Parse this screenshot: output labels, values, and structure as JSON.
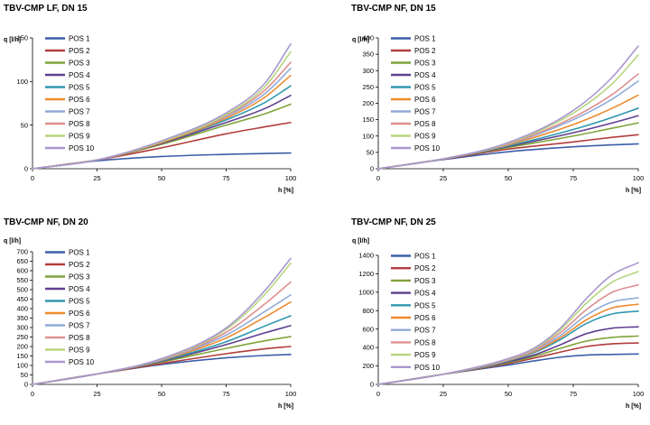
{
  "colors": [
    "#3b5ea8",
    "#b23c3c",
    "#7fa33a",
    "#5f3f8f",
    "#2f98ae",
    "#ee8a2e",
    "#90a9d8",
    "#de8f8f",
    "#b6d67e",
    "#a996cf"
  ],
  "chart_data": [
    {
      "type": "line",
      "title": "TBV-CMP LF, DN 15",
      "xlabel": "h [%]",
      "ylabel": "q [l/h]",
      "xlim": [
        0,
        100
      ],
      "ylim": [
        0,
        150
      ],
      "xticks": [
        0,
        25,
        50,
        75,
        100
      ],
      "yticks": [
        0,
        50,
        100,
        150
      ],
      "legend": "top-left",
      "x": [
        0,
        25,
        50,
        75,
        90,
        100
      ],
      "series": [
        {
          "name": "POS 1",
          "values": [
            0,
            9,
            14,
            16.5,
            17.5,
            18
          ]
        },
        {
          "name": "POS 2",
          "values": [
            0,
            10,
            24,
            40,
            48,
            53
          ]
        },
        {
          "name": "POS 3",
          "values": [
            0,
            10,
            28,
            50,
            63,
            74
          ]
        },
        {
          "name": "POS 4",
          "values": [
            0,
            10,
            29,
            53,
            69,
            84
          ]
        },
        {
          "name": "POS 5",
          "values": [
            0,
            10,
            30,
            56,
            76,
            95
          ]
        },
        {
          "name": "POS 6",
          "values": [
            0,
            10,
            30,
            58,
            82,
            107
          ]
        },
        {
          "name": "POS 7",
          "values": [
            0,
            10,
            31,
            60,
            86,
            115
          ]
        },
        {
          "name": "POS 8",
          "values": [
            0,
            10,
            31,
            61,
            90,
            122
          ]
        },
        {
          "name": "POS 9",
          "values": [
            0,
            10,
            31,
            62,
            94,
            134
          ]
        },
        {
          "name": "POS 10",
          "values": [
            0,
            10,
            32,
            64,
            98,
            143
          ]
        }
      ]
    },
    {
      "type": "line",
      "title": "TBV-CMP NF, DN 15",
      "xlabel": "h [%]",
      "ylabel": "q [l/h]",
      "xlim": [
        0,
        100
      ],
      "ylim": [
        0,
        400
      ],
      "xticks": [
        0,
        25,
        50,
        75,
        100
      ],
      "yticks": [
        0,
        50,
        100,
        150,
        200,
        250,
        300,
        350,
        400
      ],
      "legend": "top-left",
      "x": [
        0,
        25,
        50,
        75,
        90,
        100
      ],
      "series": [
        {
          "name": "POS 1",
          "values": [
            0,
            28,
            52,
            67,
            73,
            76
          ]
        },
        {
          "name": "POS 2",
          "values": [
            0,
            29,
            60,
            82,
            96,
            104
          ]
        },
        {
          "name": "POS 3",
          "values": [
            0,
            30,
            65,
            100,
            124,
            140
          ]
        },
        {
          "name": "POS 4",
          "values": [
            0,
            30,
            68,
            110,
            140,
            162
          ]
        },
        {
          "name": "POS 5",
          "values": [
            0,
            30,
            70,
            120,
            157,
            185
          ]
        },
        {
          "name": "POS 6",
          "values": [
            0,
            30,
            73,
            135,
            185,
            225
          ]
        },
        {
          "name": "POS 7",
          "values": [
            0,
            30,
            75,
            150,
            213,
            268
          ]
        },
        {
          "name": "POS 8",
          "values": [
            0,
            30,
            76,
            157,
            227,
            290
          ]
        },
        {
          "name": "POS 9",
          "values": [
            0,
            30,
            78,
            170,
            260,
            348
          ]
        },
        {
          "name": "POS 10",
          "values": [
            0,
            30,
            80,
            178,
            280,
            375
          ]
        }
      ]
    },
    {
      "type": "line",
      "title": "TBV-CMP NF, DN 20",
      "xlabel": "h [%]",
      "ylabel": "q [l/h]",
      "xlim": [
        0,
        100
      ],
      "ylim": [
        0,
        700
      ],
      "xticks": [
        0,
        25,
        50,
        75,
        100
      ],
      "yticks": [
        0,
        50,
        100,
        150,
        200,
        250,
        300,
        350,
        400,
        450,
        500,
        550,
        600,
        650,
        700
      ],
      "legend": "top-left",
      "x": [
        0,
        25,
        50,
        75,
        90,
        100
      ],
      "series": [
        {
          "name": "POS 1",
          "values": [
            0,
            55,
            105,
            140,
            153,
            158
          ]
        },
        {
          "name": "POS 2",
          "values": [
            0,
            55,
            110,
            162,
            188,
            200
          ]
        },
        {
          "name": "POS 3",
          "values": [
            0,
            55,
            118,
            190,
            230,
            252
          ]
        },
        {
          "name": "POS 4",
          "values": [
            0,
            55,
            122,
            210,
            272,
            310
          ]
        },
        {
          "name": "POS 5",
          "values": [
            0,
            55,
            125,
            225,
            308,
            362
          ]
        },
        {
          "name": "POS 6",
          "values": [
            0,
            55,
            128,
            245,
            355,
            435
          ]
        },
        {
          "name": "POS 7",
          "values": [
            0,
            55,
            130,
            260,
            385,
            472
          ]
        },
        {
          "name": "POS 8",
          "values": [
            0,
            55,
            132,
            275,
            425,
            540
          ]
        },
        {
          "name": "POS 9",
          "values": [
            0,
            55,
            134,
            290,
            475,
            640
          ]
        },
        {
          "name": "POS 10",
          "values": [
            0,
            55,
            136,
            298,
            495,
            665
          ]
        }
      ]
    },
    {
      "type": "line",
      "title": "TBV-CMP NF, DN 25",
      "xlabel": "h [%]",
      "ylabel": "q [l/h]",
      "xlim": [
        0,
        100
      ],
      "ylim": [
        0,
        1400
      ],
      "xticks": [
        0,
        25,
        50,
        75,
        100
      ],
      "yticks": [
        0,
        200,
        400,
        600,
        800,
        1000,
        1200,
        1400
      ],
      "legend": "top-left",
      "x": [
        0,
        25,
        50,
        60,
        70,
        80,
        90,
        100
      ],
      "series": [
        {
          "name": "POS 1",
          "values": [
            0,
            110,
            210,
            255,
            295,
            318,
            325,
            330
          ]
        },
        {
          "name": "POS 2",
          "values": [
            0,
            110,
            225,
            285,
            350,
            410,
            440,
            450
          ]
        },
        {
          "name": "POS 3",
          "values": [
            0,
            110,
            235,
            305,
            390,
            470,
            510,
            525
          ]
        },
        {
          "name": "POS 4",
          "values": [
            0,
            110,
            245,
            320,
            430,
            550,
            610,
            625
          ]
        },
        {
          "name": "POS 5",
          "values": [
            0,
            110,
            255,
            345,
            485,
            660,
            765,
            795
          ]
        },
        {
          "name": "POS 6",
          "values": [
            0,
            110,
            260,
            355,
            505,
            700,
            830,
            870
          ]
        },
        {
          "name": "POS 7",
          "values": [
            0,
            110,
            265,
            365,
            530,
            750,
            895,
            940
          ]
        },
        {
          "name": "POS 8",
          "values": [
            0,
            110,
            270,
            375,
            560,
            810,
            1000,
            1080
          ]
        },
        {
          "name": "POS 9",
          "values": [
            0,
            110,
            275,
            385,
            590,
            880,
            1110,
            1225
          ]
        },
        {
          "name": "POS 10",
          "values": [
            0,
            110,
            280,
            395,
            610,
            930,
            1190,
            1320
          ]
        }
      ]
    }
  ]
}
